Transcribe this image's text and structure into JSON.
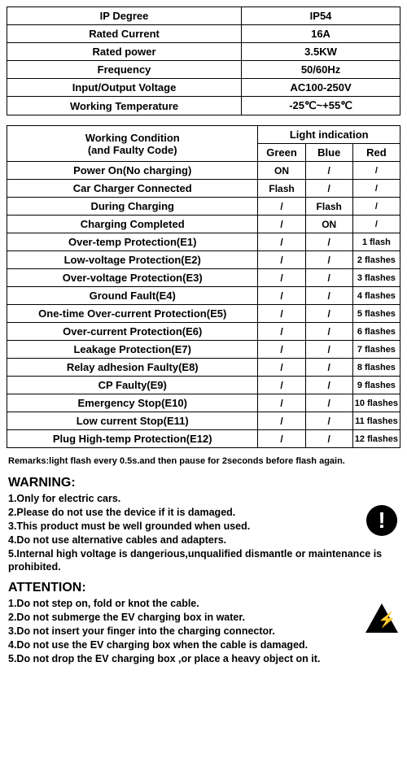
{
  "spec_table": {
    "rows": [
      {
        "label": "IP Degree",
        "value": "IP54"
      },
      {
        "label": "Rated Current",
        "value": "16A"
      },
      {
        "label": "Rated power",
        "value": "3.5KW"
      },
      {
        "label": "Frequency",
        "value": "50/60Hz"
      },
      {
        "label": "Input/Output Voltage",
        "value": "AC100-250V"
      },
      {
        "label": "Working Temperature",
        "value": "-25℃~+55℃"
      }
    ]
  },
  "cond_table": {
    "header1_left": "Working Condition\n(and Faulty Code)",
    "header1_right": "Light indication",
    "sub_headers": [
      "Green",
      "Blue",
      "Red"
    ],
    "rows": [
      {
        "cond": "Power On(No charging)",
        "g": "ON",
        "b": "/",
        "r": "/"
      },
      {
        "cond": "Car Charger Connected",
        "g": "Flash",
        "b": "/",
        "r": "/"
      },
      {
        "cond": "During Charging",
        "g": "/",
        "b": "Flash",
        "r": "/"
      },
      {
        "cond": "Charging Completed",
        "g": "/",
        "b": "ON",
        "r": "/"
      },
      {
        "cond": "Over-temp Protection(E1)",
        "g": "/",
        "b": "/",
        "r": "1 flash"
      },
      {
        "cond": "Low-voltage Protection(E2)",
        "g": "/",
        "b": "/",
        "r": "2 flashes"
      },
      {
        "cond": "Over-voltage Protection(E3)",
        "g": "/",
        "b": "/",
        "r": "3 flashes"
      },
      {
        "cond": "Ground Fault(E4)",
        "g": "/",
        "b": "/",
        "r": "4 flashes"
      },
      {
        "cond": "One-time Over-current Protection(E5)",
        "g": "/",
        "b": "/",
        "r": "5 flashes"
      },
      {
        "cond": "Over-current Protection(E6)",
        "g": "/",
        "b": "/",
        "r": "6 flashes"
      },
      {
        "cond": "Leakage Protection(E7)",
        "g": "/",
        "b": "/",
        "r": "7 flashes"
      },
      {
        "cond": "Relay adhesion Faulty(E8)",
        "g": "/",
        "b": "/",
        "r": "8 flashes"
      },
      {
        "cond": "CP Faulty(E9)",
        "g": "/",
        "b": "/",
        "r": "9 flashes"
      },
      {
        "cond": "Emergency Stop(E10)",
        "g": "/",
        "b": "/",
        "r": "10 flashes"
      },
      {
        "cond": "Low current Stop(E11)",
        "g": "/",
        "b": "/",
        "r": "11 flashes"
      },
      {
        "cond": "Plug High-temp Protection(E12)",
        "g": "/",
        "b": "/",
        "r": "12 flashes"
      }
    ]
  },
  "remarks": "Remarks:light flash every 0.5s.and then pause for 2seconds before flash again.",
  "warning": {
    "title": "WARNING:",
    "items": [
      "1.Only for electric cars.",
      "2.Please do not use the device if it is damaged.",
      "3.This product must be well grounded when used.",
      "4.Do not use alternative cables and adapters.",
      "5.Internal high voltage is dangerious,unqualified dismantle or maintenance is prohibited."
    ]
  },
  "attention": {
    "title": "ATTENTION:",
    "items": [
      "1.Do not step on, fold or knot the cable.",
      "2.Do not submerge the EV charging box in water.",
      "3.Do not insert your finger into the charging connector.",
      "4.Do not use the EV charging box when the cable is damaged.",
      "5.Do not drop the EV charging box ,or place a heavy object on it."
    ]
  },
  "icons": {
    "warn_glyph": "!",
    "bolt_glyph": "⚡"
  }
}
